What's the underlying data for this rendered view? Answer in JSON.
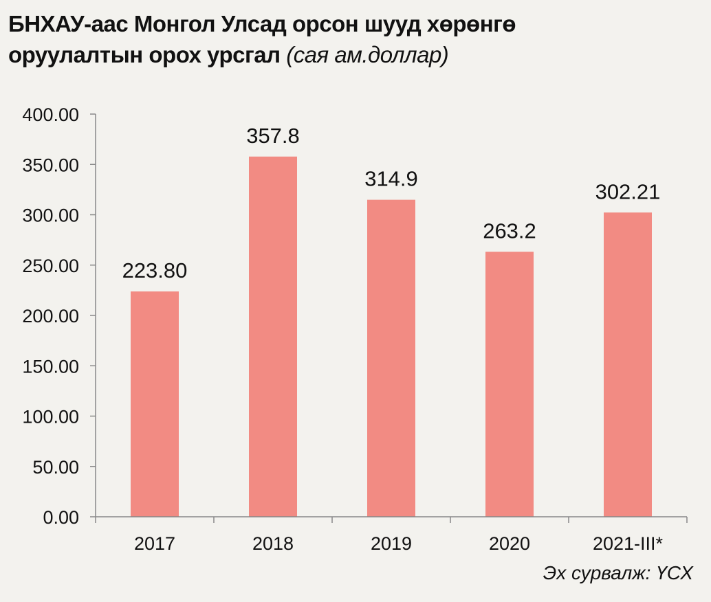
{
  "chart_data": {
    "type": "bar",
    "title": "БНХАУ-аас Монгол Улсад орсон шууд хөрөнгө оруулалтын орох урсгал",
    "title_line1": "БНХАУ-аас Монгол Улсад орсон шууд хөрөнгө",
    "title_line2": "оруулалтын орох урсгал",
    "unit": "(сая ам.доллар)",
    "categories": [
      "2017",
      "2018",
      "2019",
      "2020",
      "2021-III*"
    ],
    "values": [
      223.8,
      357.8,
      314.9,
      263.2,
      302.21
    ],
    "data_labels": [
      "223.80",
      "357.8",
      "314.9",
      "263.2",
      "302.21"
    ],
    "yticks": [
      "0.00",
      "50.00",
      "100.00",
      "150.00",
      "200.00",
      "250.00",
      "300.00",
      "350.00",
      "400.00"
    ],
    "ylim": [
      0,
      400
    ],
    "xlabel": "",
    "ylabel": "",
    "grid": false,
    "legend": "none",
    "bar_color": "#f28b83",
    "source": "Эх сурвалж: ҮСХ"
  }
}
